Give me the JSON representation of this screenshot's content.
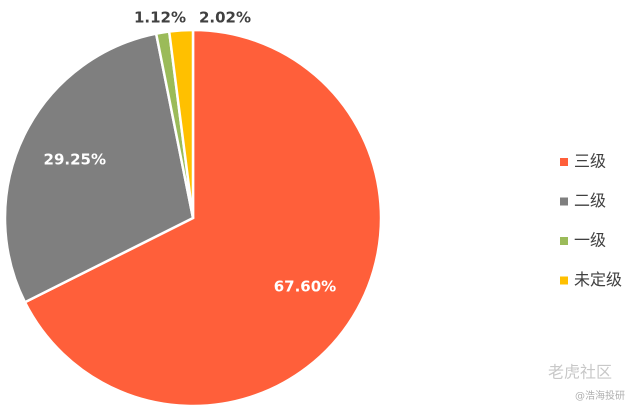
{
  "chart_data": {
    "type": "pie",
    "categories": [
      "三级",
      "二级",
      "一级",
      "未定级"
    ],
    "values": [
      67.6,
      29.25,
      1.12,
      2.02
    ],
    "value_labels": [
      "67.60%",
      "29.25%",
      "1.12%",
      "2.02%"
    ],
    "colors": [
      "#ff5f3a",
      "#7f7f7f",
      "#9bbb59",
      "#ffc000"
    ],
    "legend": "right",
    "watermark": [
      "老虎社区",
      "@浩海投研"
    ]
  }
}
